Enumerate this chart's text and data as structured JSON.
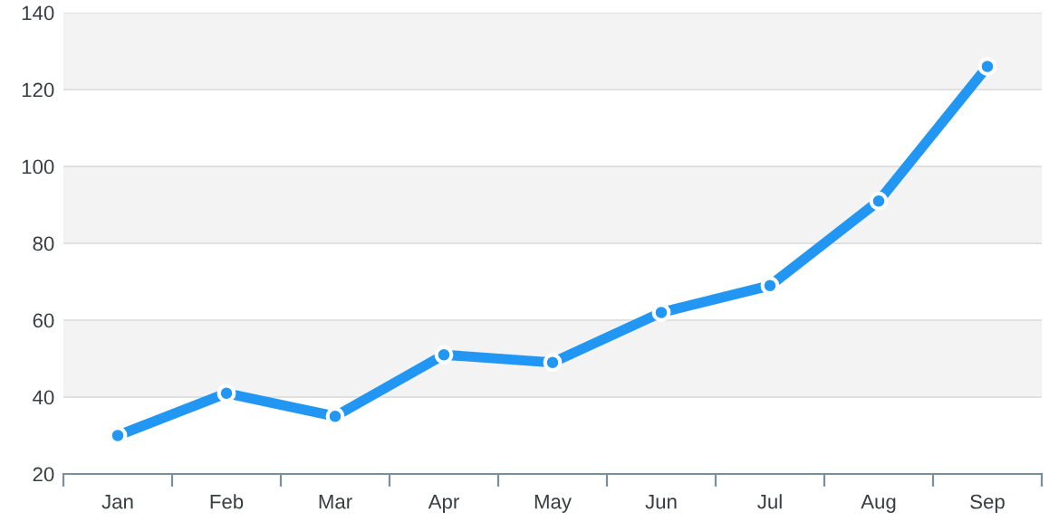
{
  "chart_data": {
    "type": "line",
    "categories": [
      "Jan",
      "Feb",
      "Mar",
      "Apr",
      "May",
      "Jun",
      "Jul",
      "Aug",
      "Sep"
    ],
    "series": [
      {
        "color": "#2196f3",
        "values": [
          30,
          41,
          35,
          51,
          49,
          62,
          69,
          91,
          126
        ]
      }
    ],
    "ylim": [
      20,
      140
    ],
    "yticks": [
      20,
      40,
      60,
      80,
      100,
      120,
      140
    ],
    "grid": "y",
    "marker": "circle",
    "line_style": "solid",
    "bands": [
      {
        "axis": "y",
        "from": 40,
        "to": 60,
        "color": "#f3f3f3"
      },
      {
        "axis": "y",
        "from": 80,
        "to": 100,
        "color": "#f3f3f3"
      },
      {
        "axis": "y",
        "from": 120,
        "to": 140,
        "color": "#f3f3f3"
      }
    ]
  }
}
